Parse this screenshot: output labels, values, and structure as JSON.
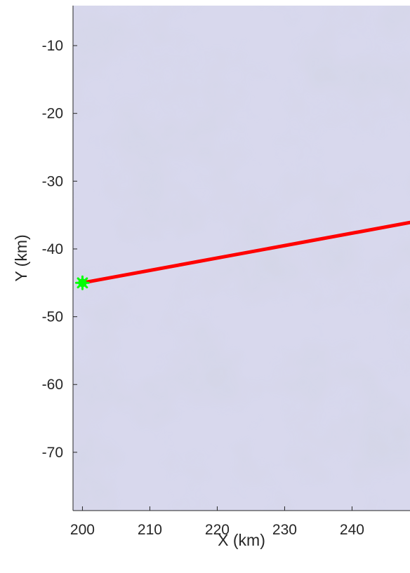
{
  "chart_data": {
    "type": "line",
    "title": "",
    "xlabel": "X (km)",
    "ylabel": "Y (km)",
    "xlim": [
      198.6,
      248.6
    ],
    "ylim": [
      -78.6,
      -4.1
    ],
    "xticks": [
      200,
      210,
      220,
      230,
      240
    ],
    "xtick_labels": [
      "200",
      "210",
      "220",
      "230",
      "240"
    ],
    "yticks": [
      -10,
      -20,
      -30,
      -40,
      -50,
      -60,
      -70
    ],
    "ytick_labels": [
      "-10",
      "-20",
      "-30",
      "-40",
      "-50",
      "-60",
      "-70"
    ],
    "grid": false,
    "legend": "none",
    "background": "satellite imagery (pale lavender-grey cloud texture)",
    "series": [
      {
        "type": "line",
        "color": "#ff0000",
        "x": [
          200.0,
          248.6
        ],
        "y": [
          -45.0,
          -36.1
        ]
      },
      {
        "type": "scatter",
        "marker": "star",
        "color": "#00ff00",
        "x": [
          200.0
        ],
        "y": [
          -45.0
        ]
      }
    ]
  }
}
